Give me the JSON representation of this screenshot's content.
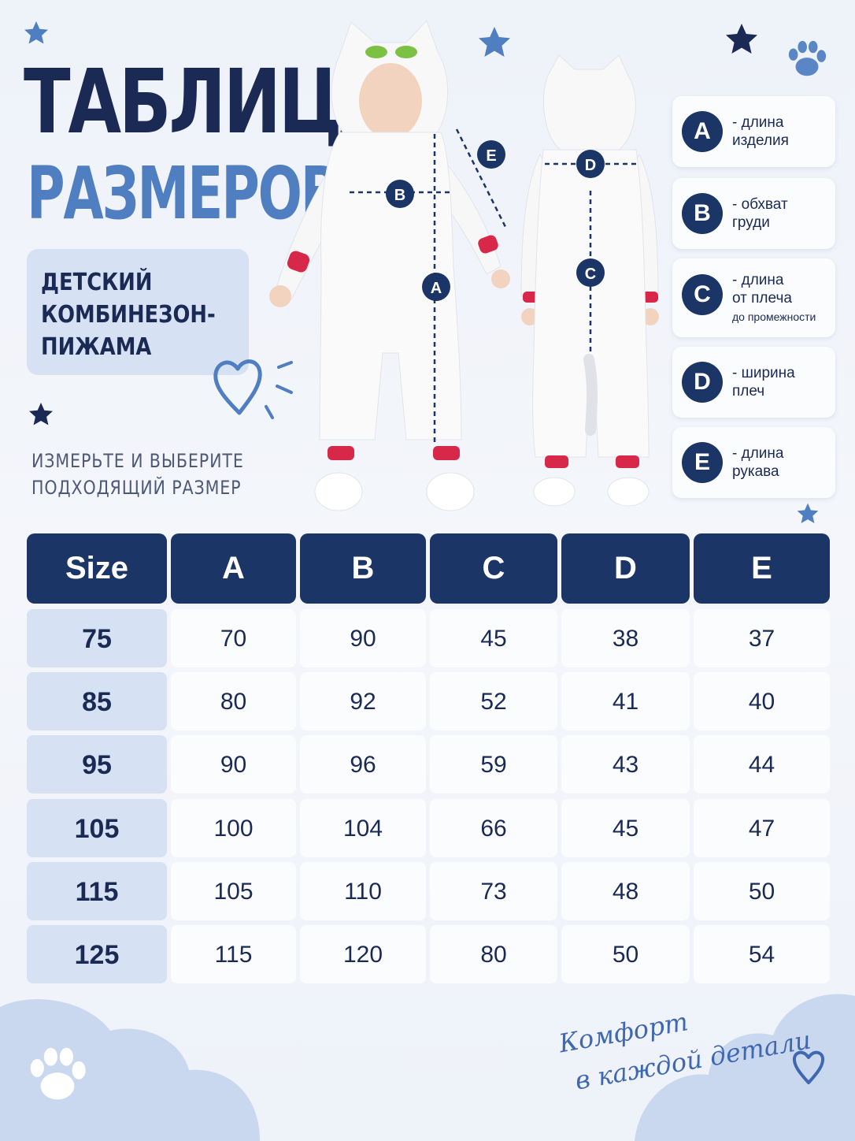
{
  "header": {
    "title_line1": "ТАБЛИЦА",
    "title_line2": "РАЗМЕРОВ"
  },
  "product": {
    "line1": "ДЕТСКИЙ",
    "line2": "КОМБИНЕЗОН-",
    "line3": "ПИЖАМА"
  },
  "instruction": {
    "line1": "ИЗМЕРЬТЕ И ВЫБЕРИТЕ",
    "line2": "ПОДХОДЯЩИЙ РАЗМЕР"
  },
  "legend": [
    {
      "letter": "A",
      "label": "- длина\n  изделия",
      "note": ""
    },
    {
      "letter": "B",
      "label": "- обхват\n  груди",
      "note": ""
    },
    {
      "letter": "C",
      "label": "- длина\n  от плеча",
      "note": "до промежности"
    },
    {
      "letter": "D",
      "label": "- ширина\n  плеч",
      "note": ""
    },
    {
      "letter": "E",
      "label": "- длина\n  рукава",
      "note": ""
    }
  ],
  "diagram_markers": {
    "front": [
      "A",
      "B",
      "E"
    ],
    "back": [
      "C",
      "D"
    ]
  },
  "table": {
    "headers": [
      "Size",
      "A",
      "B",
      "C",
      "D",
      "E"
    ],
    "rows": [
      [
        "75",
        "70",
        "90",
        "45",
        "38",
        "37"
      ],
      [
        "85",
        "80",
        "92",
        "52",
        "41",
        "40"
      ],
      [
        "95",
        "90",
        "96",
        "59",
        "43",
        "44"
      ],
      [
        "105",
        "100",
        "104",
        "66",
        "45",
        "47"
      ],
      [
        "115",
        "105",
        "110",
        "73",
        "48",
        "50"
      ],
      [
        "125",
        "115",
        "120",
        "80",
        "50",
        "54"
      ]
    ]
  },
  "footer": {
    "line1": "Комфорт",
    "line2": "в каждой детали"
  },
  "colors": {
    "navy": "#1b3566",
    "title_dark": "#1b2a55",
    "title_blue": "#4f7fc1",
    "panel": "#d6e2f3",
    "cloud": "#c9d8ef",
    "sleeve_cuff": "#d8284a"
  },
  "icons": [
    "star-icon",
    "paw-icon",
    "heart-icon",
    "cloud-shape"
  ]
}
